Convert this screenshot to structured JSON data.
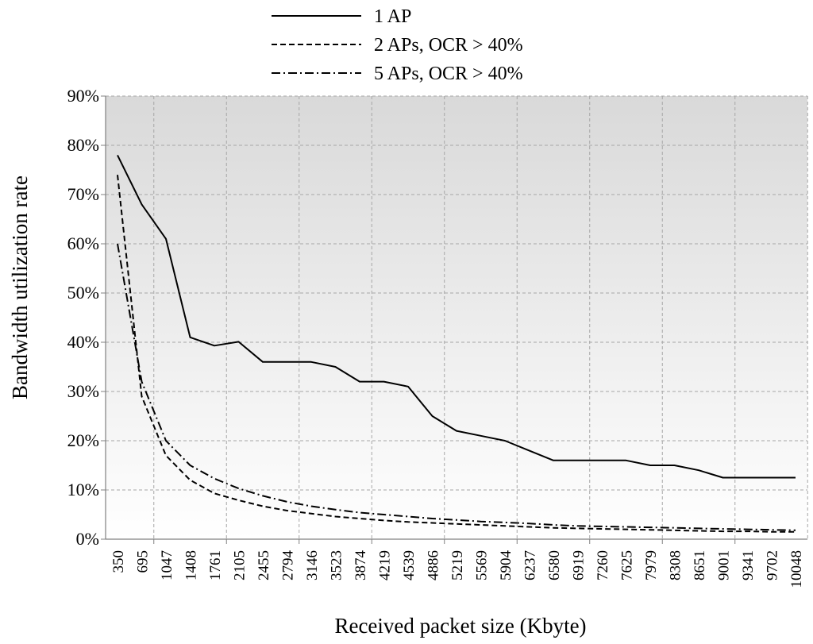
{
  "chart_data": {
    "type": "line",
    "xlabel": "Received packet size (Kbyte)",
    "ylabel": "Bandwidth utilization rate",
    "ylim": [
      0,
      90
    ],
    "y_ticks": [
      "0%",
      "10%",
      "20%",
      "30%",
      "40%",
      "50%",
      "60%",
      "70%",
      "80%",
      "90%"
    ],
    "x_ticks": [
      "350",
      "695",
      "1047",
      "1408",
      "1761",
      "2105",
      "2455",
      "2794",
      "3146",
      "3523",
      "3874",
      "4219",
      "4539",
      "4886",
      "5219",
      "5569",
      "5904",
      "6237",
      "6580",
      "6919",
      "7260",
      "7625",
      "7979",
      "8308",
      "8651",
      "9001",
      "9341",
      "9702",
      "10048"
    ],
    "grid": true,
    "legend_position": "top-center",
    "series": [
      {
        "name": "1 AP",
        "style": "solid",
        "values": [
          78,
          68,
          61,
          41,
          39.3,
          40.1,
          36,
          36,
          36,
          35,
          32,
          32,
          31,
          25,
          22,
          21,
          20,
          18,
          16,
          16,
          16,
          16,
          15,
          15,
          14,
          12.5,
          12.5,
          12.5,
          12.5
        ]
      },
      {
        "name": "2 APs, OCR > 40%",
        "style": "dashed",
        "values": [
          74,
          29,
          17,
          12,
          9.3,
          7.9,
          6.7,
          5.8,
          5.2,
          4.6,
          4.2,
          3.8,
          3.5,
          3.3,
          3.1,
          2.9,
          2.7,
          2.5,
          2.3,
          2.2,
          2.1,
          2.0,
          1.9,
          1.8,
          1.7,
          1.6,
          1.6,
          1.5,
          1.5
        ]
      },
      {
        "name": "5 APs, OCR > 40%",
        "style": "dashdot",
        "values": [
          60,
          32,
          20,
          15,
          12.3,
          10.3,
          8.8,
          7.6,
          6.7,
          6.0,
          5.4,
          5.0,
          4.6,
          4.2,
          3.9,
          3.6,
          3.4,
          3.2,
          2.9,
          2.7,
          2.6,
          2.5,
          2.4,
          2.3,
          2.2,
          2.1,
          2.0,
          1.9,
          1.8
        ]
      }
    ]
  }
}
